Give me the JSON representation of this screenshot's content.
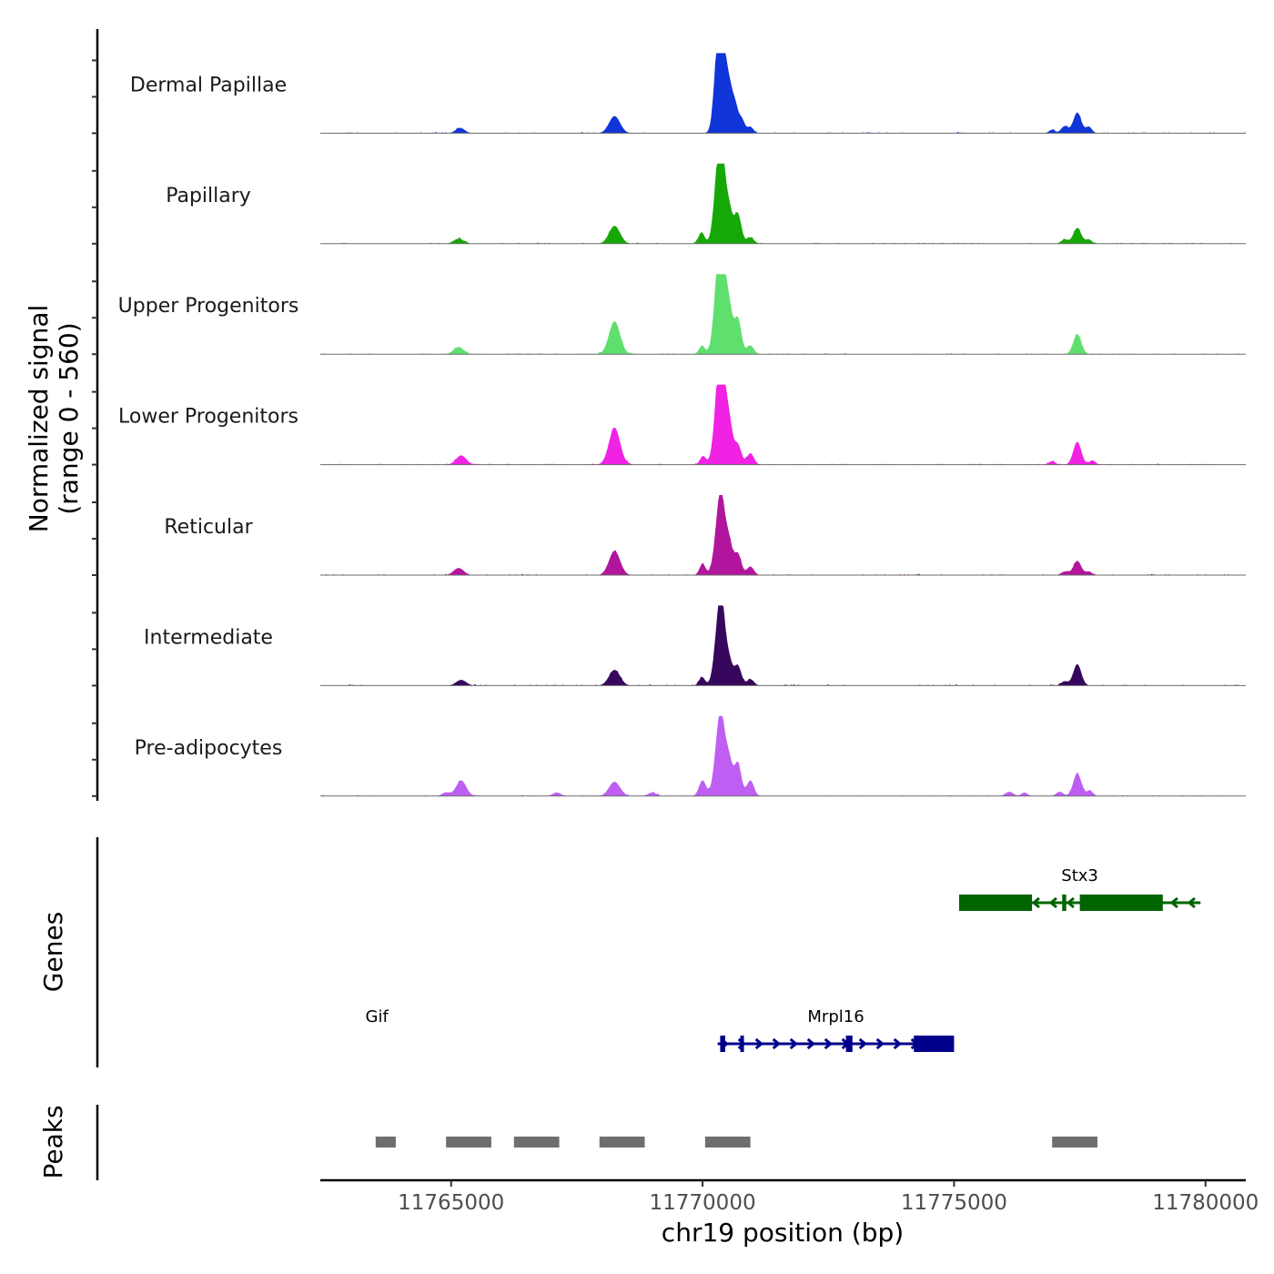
{
  "chart_data": {
    "type": "area",
    "title": "",
    "ylabel": "Normalized signal",
    "ylabel_range": "(range 0 - 560)",
    "y_range": [
      0,
      560
    ],
    "xlabel": "chr19 position (bp)",
    "x_range": [
      11762400,
      11780800
    ],
    "x_ticks": [
      11765000,
      11770000,
      11775000,
      11780000
    ],
    "x_tick_labels": [
      "11765000",
      "11770000",
      "11775000",
      "11780000"
    ],
    "tracks": [
      {
        "name": "Dermal Papillae",
        "color": "#1035d8",
        "peaks": [
          [
            11765180,
            38,
            90
          ],
          [
            11768250,
            120,
            110
          ],
          [
            11770300,
            480,
            75
          ],
          [
            11770380,
            560,
            70
          ],
          [
            11770520,
            330,
            70
          ],
          [
            11770650,
            170,
            60
          ],
          [
            11770780,
            95,
            60
          ],
          [
            11770950,
            45,
            60
          ],
          [
            11776950,
            25,
            60
          ],
          [
            11777200,
            50,
            70
          ],
          [
            11777450,
            145,
            80
          ],
          [
            11777680,
            45,
            60
          ]
        ]
      },
      {
        "name": "Papillary",
        "color": "#16a807",
        "peaks": [
          [
            11765150,
            35,
            100
          ],
          [
            11768250,
            125,
            110
          ],
          [
            11769980,
            80,
            60
          ],
          [
            11770300,
            420,
            80
          ],
          [
            11770380,
            460,
            70
          ],
          [
            11770520,
            250,
            70
          ],
          [
            11770700,
            210,
            70
          ],
          [
            11770950,
            45,
            70
          ],
          [
            11777200,
            30,
            70
          ],
          [
            11777450,
            110,
            80
          ],
          [
            11777680,
            30,
            60
          ]
        ]
      },
      {
        "name": "Upper Progenitors",
        "color": "#5fdf6e",
        "peaks": [
          [
            11765150,
            50,
            100
          ],
          [
            11768250,
            230,
            110
          ],
          [
            11769990,
            60,
            60
          ],
          [
            11770300,
            450,
            80
          ],
          [
            11770380,
            560,
            70
          ],
          [
            11770520,
            340,
            70
          ],
          [
            11770700,
            250,
            70
          ],
          [
            11770950,
            60,
            70
          ],
          [
            11777450,
            140,
            80
          ]
        ]
      },
      {
        "name": "Lower Progenitors",
        "color": "#f022e4",
        "peaks": [
          [
            11765200,
            65,
            100
          ],
          [
            11768250,
            260,
            110
          ],
          [
            11770010,
            60,
            60
          ],
          [
            11770300,
            400,
            80
          ],
          [
            11770380,
            560,
            70
          ],
          [
            11770520,
            320,
            70
          ],
          [
            11770700,
            140,
            70
          ],
          [
            11770950,
            80,
            70
          ],
          [
            11776950,
            25,
            60
          ],
          [
            11777450,
            160,
            80
          ],
          [
            11777750,
            30,
            60
          ]
        ]
      },
      {
        "name": "Reticular",
        "color": "#b2159d",
        "peaks": [
          [
            11765150,
            50,
            100
          ],
          [
            11768250,
            170,
            110
          ],
          [
            11770000,
            80,
            60
          ],
          [
            11770300,
            280,
            80
          ],
          [
            11770380,
            390,
            70
          ],
          [
            11770520,
            240,
            70
          ],
          [
            11770700,
            150,
            70
          ],
          [
            11770950,
            60,
            70
          ],
          [
            11777200,
            25,
            70
          ],
          [
            11777450,
            100,
            80
          ],
          [
            11777680,
            25,
            60
          ]
        ]
      },
      {
        "name": "Intermediate",
        "color": "#36075c",
        "peaks": [
          [
            11765200,
            40,
            100
          ],
          [
            11768250,
            110,
            110
          ],
          [
            11769990,
            60,
            60
          ],
          [
            11770300,
            300,
            80
          ],
          [
            11770380,
            440,
            70
          ],
          [
            11770520,
            180,
            70
          ],
          [
            11770700,
            140,
            70
          ],
          [
            11770950,
            45,
            70
          ],
          [
            11777200,
            30,
            70
          ],
          [
            11777450,
            150,
            80
          ]
        ]
      },
      {
        "name": "Pre-adipocytes",
        "color": "#be5ef2",
        "peaks": [
          [
            11764900,
            25,
            80
          ],
          [
            11765200,
            110,
            100
          ],
          [
            11767100,
            25,
            80
          ],
          [
            11768250,
            100,
            110
          ],
          [
            11769000,
            25,
            80
          ],
          [
            11770000,
            110,
            70
          ],
          [
            11770300,
            300,
            80
          ],
          [
            11770380,
            380,
            70
          ],
          [
            11770520,
            260,
            70
          ],
          [
            11770700,
            230,
            70
          ],
          [
            11770950,
            110,
            70
          ],
          [
            11776100,
            30,
            80
          ],
          [
            11776400,
            25,
            60
          ],
          [
            11777100,
            30,
            70
          ],
          [
            11777450,
            160,
            80
          ],
          [
            11777700,
            40,
            60
          ]
        ]
      }
    ],
    "genes": [
      {
        "name": "Stx3",
        "strand": "-",
        "color": "#006400",
        "start": 11775100,
        "end": 11779900,
        "exons": [
          [
            11775100,
            11776550
          ],
          [
            11777150,
            11777230
          ],
          [
            11777500,
            11779150
          ]
        ]
      },
      {
        "name": "Gif",
        "strand": "+",
        "color": "#00008b",
        "start": 11763450,
        "end": 11763600,
        "exons": []
      },
      {
        "name": "Mrpl16",
        "strand": "+",
        "color": "#00008b",
        "start": 11770300,
        "end": 11775000,
        "exons": [
          [
            11770350,
            11770450
          ],
          [
            11770750,
            11770800
          ],
          [
            11772850,
            11772980
          ],
          [
            11774200,
            11775000
          ]
        ]
      }
    ],
    "peaks": [
      [
        11763500,
        11763900
      ],
      [
        11764900,
        11765800
      ],
      [
        11766250,
        11767150
      ],
      [
        11767950,
        11768850
      ],
      [
        11770050,
        11770950
      ],
      [
        11776950,
        11777850
      ]
    ],
    "panel_labels": {
      "genes": "Genes",
      "peaks": "Peaks"
    }
  }
}
